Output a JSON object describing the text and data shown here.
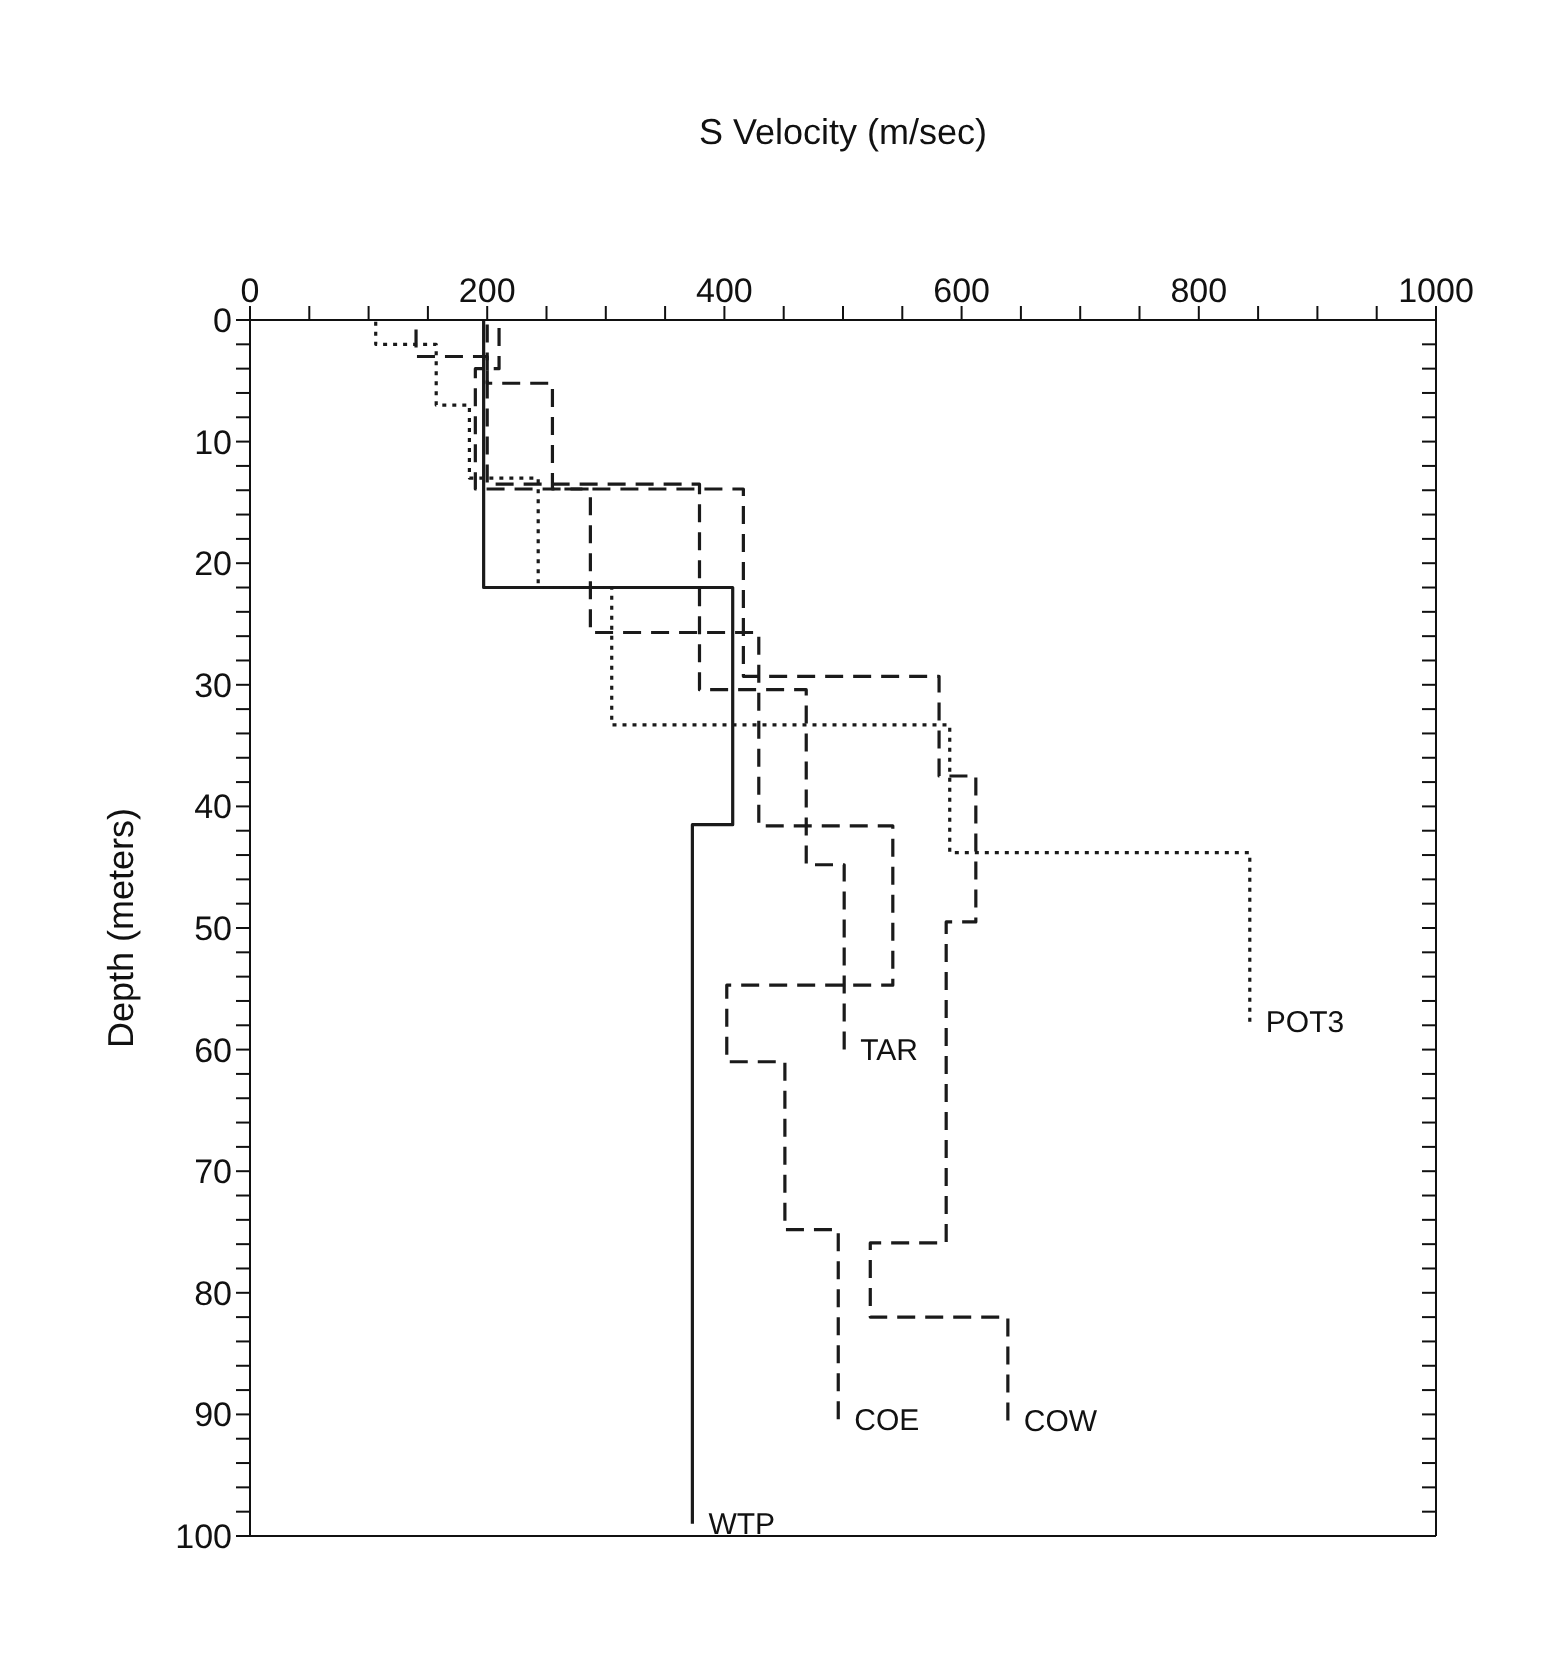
{
  "chart_data": {
    "type": "line",
    "xlabel": "S Velocity (m/sec)",
    "ylabel": "Depth (meters)",
    "xlim": [
      0,
      1000
    ],
    "ylim": [
      100,
      0
    ],
    "xticks": [
      0,
      {
        "value": 50,
        "label": null
      },
      {
        "value": 100,
        "label": null
      },
      {
        "value": 150,
        "label": null
      },
      200,
      {
        "value": 250,
        "label": null
      },
      {
        "value": 300,
        "label": null
      },
      {
        "value": 350,
        "label": null
      },
      400,
      {
        "value": 450,
        "label": null
      },
      {
        "value": 500,
        "label": null
      },
      {
        "value": 550,
        "label": null
      },
      600,
      {
        "value": 650,
        "label": null
      },
      {
        "value": 700,
        "label": null
      },
      {
        "value": 750,
        "label": null
      },
      800,
      {
        "value": 850,
        "label": null
      },
      {
        "value": 900,
        "label": null
      },
      {
        "value": 950,
        "label": null
      },
      1000
    ],
    "yticks": [
      0,
      {
        "value": 2,
        "label": null
      },
      {
        "value": 4,
        "label": null
      },
      {
        "value": 6,
        "label": null
      },
      {
        "value": 8,
        "label": null
      },
      10,
      {
        "value": 12,
        "label": null
      },
      {
        "value": 14,
        "label": null
      },
      {
        "value": 16,
        "label": null
      },
      {
        "value": 18,
        "label": null
      },
      20,
      {
        "value": 22,
        "label": null
      },
      {
        "value": 24,
        "label": null
      },
      {
        "value": 26,
        "label": null
      },
      {
        "value": 28,
        "label": null
      },
      30,
      {
        "value": 32,
        "label": null
      },
      {
        "value": 34,
        "label": null
      },
      {
        "value": 36,
        "label": null
      },
      {
        "value": 38,
        "label": null
      },
      40,
      {
        "value": 42,
        "label": null
      },
      {
        "value": 44,
        "label": null
      },
      {
        "value": 46,
        "label": null
      },
      {
        "value": 48,
        "label": null
      },
      50,
      {
        "value": 52,
        "label": null
      },
      {
        "value": 54,
        "label": null
      },
      {
        "value": 56,
        "label": null
      },
      {
        "value": 58,
        "label": null
      },
      60,
      {
        "value": 62,
        "label": null
      },
      {
        "value": 64,
        "label": null
      },
      {
        "value": 66,
        "label": null
      },
      {
        "value": 68,
        "label": null
      },
      70,
      {
        "value": 72,
        "label": null
      },
      {
        "value": 74,
        "label": null
      },
      {
        "value": 76,
        "label": null
      },
      {
        "value": 78,
        "label": null
      },
      80,
      {
        "value": 82,
        "label": null
      },
      {
        "value": 84,
        "label": null
      },
      {
        "value": 86,
        "label": null
      },
      {
        "value": 88,
        "label": null
      },
      90,
      {
        "value": 92,
        "label": null
      },
      {
        "value": 94,
        "label": null
      },
      {
        "value": 96,
        "label": null
      },
      {
        "value": 98,
        "label": null
      },
      100
    ],
    "series": [
      {
        "name": "WTP",
        "color": "#1a1a1a",
        "line_style": "solid",
        "x": [
          197,
          197,
          407,
          407,
          373,
          373
        ],
        "values": [
          0,
          22,
          22,
          41.5,
          41.5,
          99
        ]
      },
      {
        "name": "POT3",
        "color": "#1a1a1a",
        "line_style": "dotted",
        "x": [
          106,
          106,
          157,
          157,
          185,
          185,
          243,
          243,
          305,
          305,
          590,
          590,
          843,
          843
        ],
        "values": [
          0,
          2,
          2,
          7,
          7,
          13,
          13,
          22,
          22,
          33.3,
          33.3,
          43.8,
          43.8,
          57.7
        ]
      },
      {
        "name": "TAR",
        "color": "#1a1a1a",
        "line_style": "dashed",
        "x": [
          200,
          200,
          379,
          379,
          469,
          469,
          501,
          501
        ],
        "values": [
          0,
          13.5,
          13.5,
          30.4,
          30.4,
          44.8,
          44.8,
          60
        ]
      },
      {
        "name": "COE",
        "color": "#1a1a1a",
        "line_style": "dashed",
        "x": [
          210,
          210,
          190,
          190,
          287,
          287,
          429,
          429,
          542,
          542,
          402,
          402,
          451,
          451,
          496,
          496
        ],
        "values": [
          0,
          4,
          4,
          13.9,
          13.9,
          25.7,
          25.7,
          41.6,
          41.6,
          54.7,
          54.7,
          61,
          61,
          74.8,
          74.8,
          90.4
        ]
      },
      {
        "name": "COW",
        "color": "#1a1a1a",
        "line_style": "dashed",
        "x": [
          140,
          140,
          200,
          200,
          255,
          255,
          416,
          416,
          581,
          581,
          612,
          612,
          587,
          587,
          523,
          523,
          639,
          639
        ],
        "values": [
          0,
          3,
          3,
          5.2,
          5.2,
          13.9,
          13.9,
          29.3,
          29.3,
          37.5,
          37.5,
          49.5,
          49.5,
          75.9,
          75.9,
          82,
          82,
          90.5
        ]
      }
    ]
  }
}
